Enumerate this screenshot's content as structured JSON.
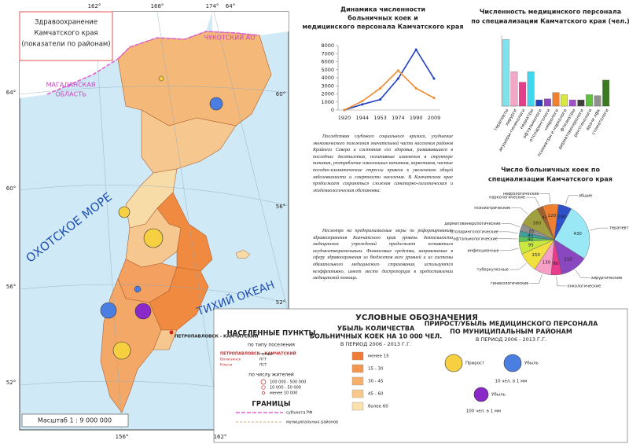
{
  "map": {
    "title": [
      "Здравоохранение",
      "Камчатского края",
      "(показатели по районам)"
    ],
    "chukotka": "ЧУКОТСКИЙ АО",
    "magadan": [
      "МАГАДАНСКАЯ",
      "ОБЛАСТЬ"
    ],
    "okhotsk": "ОХОТСКОЕ МОРЕ",
    "pacific": "ТИХИЙ ОКЕАН",
    "capital": "ПЕТРОПАВЛОВСК - КАМЧАТСКИЙ",
    "coords": [
      "162°",
      "168°",
      "174°",
      "64°",
      "64°",
      "60°",
      "56°",
      "52°",
      "60°",
      "56°",
      "52°",
      "156°",
      "162°"
    ],
    "scale": "Масштаб 1 : 9 000 000"
  },
  "text": [
    "Последствия глубокого социального кризиса, ухудшение экономического положения значительной части населения районов Крайнего Севера и состояния его здоровья, развивавшиеся в последние десятилетия, негативные изменения в структуре питания, употребление алкогольных напитков, наркотиков, частые погодно-климатические стрессы привели к увеличению общей заболеваемости и смертности населения. В Камчатском крае продолжает сохраняться сложная санитарно-гигиеническая и эпидемиологическая обстановка.",
    "Несмотря на предпринимаемые меры по реформированию здравоохранения Камчатского края уровень деятельности медицинских учреждений продолжает оставаться неудовлетворительным. Финансовые средства, направляемые в сферу здравоохранения из бюджетов всех уровней и из системы обязательного медицинского страхования, используются неэффективно, имеет место диспропорция в предоставлении медицинской помощи."
  ],
  "chart_data": [
    {
      "type": "line",
      "title": [
        "Динамика численности",
        "больничных коек и",
        "медицинского персонала Камчатского края"
      ],
      "categories": [
        "1920",
        "1944",
        "1953",
        "1974",
        "1990",
        "2009"
      ],
      "series": [
        {
          "color": "#1f3fc4",
          "values": [
            0,
            700,
            1300,
            3900,
            7500,
            3900
          ]
        },
        {
          "color": "#f08a30",
          "values": [
            0,
            1100,
            2700,
            4900,
            2700,
            1500
          ]
        }
      ],
      "ylim": [
        0,
        8000
      ],
      "yticks": [
        0,
        1000,
        2000,
        3000,
        4000,
        5000,
        6000,
        7000,
        8000
      ],
      "grid": false
    },
    {
      "type": "bar",
      "title": [
        "Численность медицинского персонала",
        "по специализации Камчатского края (чел.)"
      ],
      "categories": [
        "терапевты",
        "хирурги",
        "акушеры-гинекологи",
        "педиатры",
        "офтальмологи",
        "отоларингологи",
        "неврологи",
        "психиатры и наркологи",
        "фтизиатры",
        "дерматовенерологи",
        "рентгенологи",
        "врачи лфк",
        "стоматологи"
      ],
      "values": [
        320,
        165,
        115,
        165,
        30,
        35,
        65,
        55,
        30,
        30,
        55,
        50,
        125
      ],
      "colors": [
        "#7fe3ee",
        "#f2a6c8",
        "#e83c8c",
        "#40d8ee",
        "#2440b8",
        "#8a48c0",
        "#f08030",
        "#d8e840",
        "#a050c8",
        "#404040",
        "#60c040",
        "#909090",
        "#3a7a20"
      ],
      "ylim": [
        0,
        340
      ]
    },
    {
      "type": "pie",
      "title": [
        "Число больничных коек по",
        "специализации Камчатского края"
      ],
      "categories": [
        "терапевтические",
        "хирургические",
        "онкологические",
        "гинекологические",
        "туберкулезные",
        "инфекционные",
        "офтальмологические",
        "отоларингологические",
        "дерматовенерологические",
        "психиатрические",
        "наркологические",
        "неврологические",
        "общие"
      ],
      "values": [
        430,
        210,
        80,
        130,
        150,
        95,
        40,
        40,
        55,
        160,
        45,
        120,
        100
      ],
      "colors": [
        "#9ae8f6",
        "#8a48c0",
        "#e83c8c",
        "#f6a0c8",
        "#f0e040",
        "#c8e840",
        "#60c060",
        "#40a0a0",
        "#909090",
        "#a0a040",
        "#a06030",
        "#f08030",
        "#3050c8"
      ]
    }
  ],
  "legend": {
    "title": "УСЛОВНЫЕ ОБОЗНАЧЕНИЯ",
    "settlements": {
      "title": "НАСЕЛЕННЫЕ ПУНКТЫ",
      "by_type": "по типу поселения",
      "types": [
        "ПЕТРОПАВЛОВСК - КАМЧАТСКИЙ",
        "города",
        "Вилючинск",
        "ПГТ",
        "Ключи",
        "ПСТ"
      ],
      "by_size": "по числу жителей",
      "sizes": [
        "100 000 - 500 000",
        "10 000 - 50 000",
        "менее 10 000"
      ],
      "borders_title": "ГРАНИЦЫ",
      "borders": [
        "субъекта РФ",
        "муниципальных районов"
      ]
    },
    "beds": {
      "title": [
        "УБЫЛЬ КОЛИЧЕСТВА",
        "БОЛЬНИЧНЫХ КОЕК НА 10 000 ЧЕЛ.",
        "В ПЕРИОД 2006 - 2013 Г.Г."
      ],
      "classes": [
        "менее 15",
        "15 - 30",
        "30 - 45",
        "45 - 60",
        "более 60"
      ],
      "colors": [
        "#f07a36",
        "#f49650",
        "#f6b06c",
        "#f8c98a",
        "#fae0aa"
      ]
    },
    "staff": {
      "title": [
        "ПРИРОСТ/УБЫЛЬ МЕДИЦИНСКОГО ПЕРСОНАЛА",
        "ПО МУНИЦИПАЛЬНЫМ РАЙОНАМ",
        "В ПЕРИОД 2006 - 2013 Г.Г."
      ],
      "growth": "Прирост",
      "loss": "Убыль",
      "scale1": "10 чел. в 1 мм",
      "loss2": "Убыль",
      "scale2": "100 чел. в 1 мм"
    }
  }
}
